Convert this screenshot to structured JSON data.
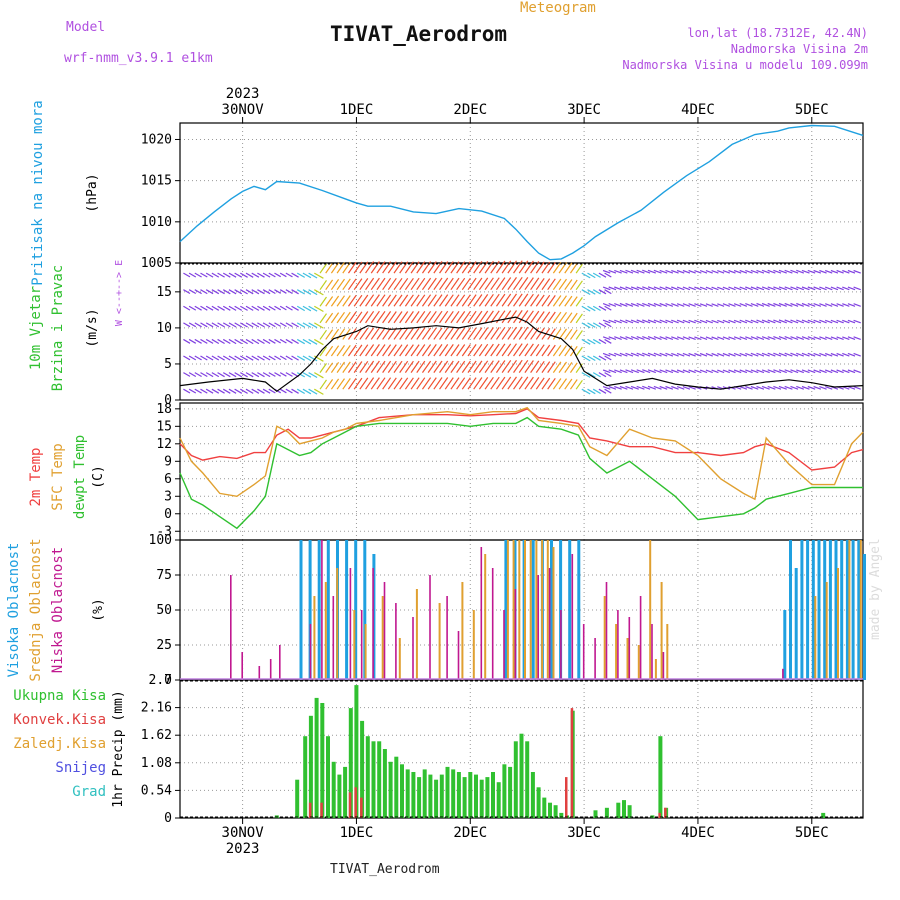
{
  "header": {
    "model_label": "Model",
    "model_name": "wrf-nmm_v3.9.1 e1km",
    "kind": "Meteogram",
    "station": "TIVAT_Aerodrom",
    "lonlat": "lon,lat (18.7312E, 42.4N)",
    "elev": "Nadmorska Visina 2m",
    "elev_model": "Nadmorska Visina u modelu 109.099m",
    "footer_station": "TIVAT_Aerodrom",
    "credit": "made by Angel"
  },
  "time_axis": {
    "top_labels": [
      "30NOV",
      "1DEC",
      "2DEC",
      "3DEC",
      "4DEC",
      "5DEC"
    ],
    "top_year": "2023",
    "bottom_labels": [
      "30NOV",
      "1DEC",
      "2DEC",
      "3DEC",
      "4DEC",
      "5DEC"
    ],
    "bottom_year": "2023",
    "range_days": [
      -0.55,
      5.45
    ]
  },
  "colors": {
    "pressure": "#1fa0e0",
    "temp2m": "#f04040",
    "sfc_temp": "#e0a030",
    "dewpoint": "#30c030",
    "cloud_high": "#1fa0e0",
    "cloud_mid": "#e0a030",
    "cloud_low": "#c01890",
    "precip_total": "#30c030",
    "precip_conv": "#e04040",
    "snow": "#5050e0",
    "hail": "#30c0c0",
    "ylabel_wind": "#30c030",
    "wind_dir_key": "#b050e0"
  },
  "chart_data": [
    {
      "type": "line",
      "panel": "pressure",
      "ylabel_lines": [
        "Pritisak na nivou mora",
        "(hPa)"
      ],
      "ylim": [
        1005,
        1022
      ],
      "yticks": [
        1005,
        1010,
        1015,
        1020
      ],
      "series": [
        {
          "name": "Pritisak na nivou mora",
          "x": [
            -0.55,
            -0.4,
            -0.25,
            -0.1,
            0.0,
            0.1,
            0.2,
            0.3,
            0.5,
            0.7,
            0.9,
            1.0,
            1.1,
            1.3,
            1.5,
            1.7,
            1.9,
            2.1,
            2.3,
            2.4,
            2.5,
            2.6,
            2.7,
            2.8,
            2.9,
            3.0,
            3.1,
            3.3,
            3.5,
            3.7,
            3.9,
            4.1,
            4.3,
            4.5,
            4.7,
            4.8,
            5.0,
            5.2,
            5.45
          ],
          "values": [
            1007.6,
            1009.5,
            1011.2,
            1012.8,
            1013.7,
            1014.3,
            1013.9,
            1014.9,
            1014.7,
            1013.8,
            1012.8,
            1012.3,
            1011.9,
            1011.9,
            1011.2,
            1011.0,
            1011.6,
            1011.3,
            1010.4,
            1009.1,
            1007.6,
            1006.2,
            1005.4,
            1005.5,
            1006.2,
            1007.1,
            1008.2,
            1009.9,
            1011.4,
            1013.6,
            1015.6,
            1017.3,
            1019.4,
            1020.6,
            1021.0,
            1021.4,
            1021.7,
            1021.6,
            1020.5
          ]
        }
      ]
    },
    {
      "type": "line",
      "panel": "wind",
      "ylabel_lines": [
        "10m Vjetar",
        "Brzina i Pravac",
        "(m/s)"
      ],
      "direction_key": [
        "N",
        "^",
        "|",
        "W  <--+-->  E",
        "|",
        "v",
        "S"
      ],
      "ylim": [
        0,
        19
      ],
      "yticks": [
        0,
        5,
        10,
        15
      ],
      "series": [
        {
          "name": "Brzina",
          "x": [
            -0.55,
            -0.3,
            0.0,
            0.2,
            0.3,
            0.5,
            0.6,
            0.7,
            0.8,
            0.9,
            1.0,
            1.1,
            1.3,
            1.5,
            1.7,
            1.9,
            2.1,
            2.3,
            2.4,
            2.5,
            2.6,
            2.7,
            2.8,
            2.9,
            3.0,
            3.2,
            3.4,
            3.6,
            3.8,
            4.0,
            4.2,
            4.4,
            4.6,
            4.8,
            5.0,
            5.2,
            5.45
          ],
          "values": [
            2.0,
            2.5,
            3.0,
            2.5,
            1.2,
            3.5,
            5.0,
            7.0,
            8.5,
            9.0,
            9.5,
            10.3,
            9.8,
            10.0,
            10.3,
            10.0,
            10.6,
            11.2,
            11.5,
            10.8,
            9.5,
            9.0,
            8.5,
            7.0,
            4.0,
            2.0,
            2.5,
            3.0,
            2.2,
            1.8,
            1.5,
            2.0,
            2.5,
            2.8,
            2.4,
            1.8,
            2.0
          ]
        }
      ]
    },
    {
      "type": "line",
      "panel": "temperature",
      "ylabel_lines": [
        "2m Temp",
        "SFC Temp",
        "dewpt Temp",
        "(C)"
      ],
      "ylim": [
        -4.5,
        19
      ],
      "yticks": [
        -3,
        0,
        3,
        6,
        9,
        12,
        15,
        18
      ],
      "x": [
        -0.55,
        -0.45,
        -0.35,
        -0.2,
        -0.05,
        0.1,
        0.2,
        0.3,
        0.4,
        0.5,
        0.6,
        0.7,
        0.8,
        0.9,
        1.0,
        1.2,
        1.5,
        1.8,
        2.0,
        2.2,
        2.4,
        2.5,
        2.6,
        2.8,
        2.95,
        3.05,
        3.2,
        3.4,
        3.6,
        3.8,
        4.0,
        4.2,
        4.4,
        4.5,
        4.6,
        4.8,
        5.0,
        5.2,
        5.35,
        5.45
      ],
      "series": [
        {
          "name": "2m Temp",
          "values": [
            12.0,
            10.0,
            9.2,
            9.8,
            9.5,
            10.5,
            10.5,
            13.5,
            14.5,
            13.0,
            13.0,
            13.5,
            14.0,
            14.5,
            15.0,
            16.5,
            17.0,
            17.0,
            16.8,
            17.0,
            17.2,
            18.0,
            16.5,
            16.0,
            15.5,
            13.0,
            12.5,
            11.5,
            11.5,
            10.5,
            10.5,
            10.0,
            10.5,
            11.5,
            12.0,
            10.5,
            7.5,
            8.0,
            10.5,
            11.0
          ]
        },
        {
          "name": "SFC Temp",
          "values": [
            13.0,
            9.0,
            7.0,
            3.5,
            3.0,
            5.0,
            6.5,
            15.0,
            14.0,
            12.0,
            12.5,
            13.0,
            14.0,
            14.5,
            15.5,
            16.0,
            17.0,
            17.5,
            17.0,
            17.5,
            17.5,
            18.2,
            16.0,
            15.5,
            15.0,
            11.5,
            10.0,
            14.5,
            13.0,
            12.5,
            10.0,
            6.0,
            3.5,
            2.5,
            13.0,
            8.5,
            5.0,
            5.0,
            12.0,
            14.0
          ]
        },
        {
          "name": "dewpt Temp",
          "values": [
            7.0,
            2.5,
            1.5,
            -0.5,
            -2.5,
            0.5,
            3.0,
            12.0,
            11.0,
            10.0,
            10.5,
            12.0,
            13.0,
            14.0,
            15.0,
            15.5,
            15.5,
            15.5,
            15.0,
            15.5,
            15.5,
            16.5,
            15.0,
            14.5,
            13.5,
            9.5,
            7.0,
            9.0,
            6.0,
            3.0,
            -1.0,
            -0.5,
            0.0,
            1.0,
            2.5,
            3.5,
            4.5,
            4.5,
            4.5,
            4.5
          ]
        }
      ]
    },
    {
      "type": "bar",
      "panel": "clouds",
      "ylabel_lines": [
        "Visoka Oblacnost",
        "Srednja Oblacnost",
        "Niska Oblacnost",
        "(%)"
      ],
      "ylim": [
        0,
        100
      ],
      "yticks": [
        0,
        25,
        50,
        75,
        100
      ],
      "series": [
        {
          "name": "Visoka Oblacnost",
          "x": [
            0.5,
            0.58,
            0.66,
            0.74,
            0.82,
            0.9,
            0.98,
            1.06,
            1.14,
            2.3,
            2.38,
            2.46,
            2.54,
            2.62,
            2.7,
            2.78,
            2.86,
            2.94,
            4.75,
            4.8,
            4.85,
            4.9,
            4.95,
            5.0,
            5.05,
            5.1,
            5.15,
            5.2,
            5.25,
            5.3,
            5.35,
            5.4,
            5.45
          ],
          "values": [
            100,
            100,
            100,
            100,
            100,
            100,
            100,
            100,
            90,
            100,
            100,
            100,
            100,
            100,
            100,
            100,
            100,
            100,
            50,
            100,
            80,
            100,
            100,
            100,
            100,
            100,
            100,
            100,
            100,
            100,
            100,
            100,
            90
          ]
        },
        {
          "name": "Srednja Oblacnost",
          "x": [
            0.6,
            0.7,
            0.8,
            0.95,
            1.05,
            1.2,
            1.35,
            1.5,
            1.7,
            1.9,
            2.0,
            2.1,
            2.3,
            2.35,
            2.4,
            2.45,
            2.5,
            2.55,
            2.6,
            2.65,
            2.7,
            3.15,
            3.25,
            3.35,
            3.45,
            3.55,
            3.6,
            3.65,
            3.7,
            5.0,
            5.1,
            5.2,
            5.3,
            5.4
          ],
          "values": [
            60,
            70,
            80,
            50,
            40,
            60,
            30,
            65,
            55,
            70,
            50,
            90,
            100,
            100,
            100,
            100,
            100,
            100,
            100,
            100,
            95,
            60,
            40,
            30,
            25,
            100,
            15,
            70,
            40,
            60,
            70,
            80,
            100,
            100
          ]
        },
        {
          "name": "Niska Oblacnost",
          "x": [
            -0.15,
            -0.05,
            0.1,
            0.2,
            0.28,
            0.55,
            0.65,
            0.75,
            0.9,
            1.0,
            1.1,
            1.2,
            1.3,
            1.45,
            1.6,
            1.75,
            1.85,
            2.05,
            2.15,
            2.25,
            2.35,
            2.55,
            2.65,
            2.75,
            2.85,
            2.95,
            3.05,
            3.15,
            3.25,
            3.35,
            3.45,
            3.55,
            3.65,
            4.7
          ],
          "values": [
            75,
            20,
            10,
            15,
            25,
            40,
            100,
            60,
            80,
            50,
            80,
            70,
            55,
            45,
            75,
            60,
            35,
            95,
            80,
            50,
            65,
            75,
            80,
            50,
            90,
            40,
            30,
            70,
            50,
            45,
            60,
            40,
            20,
            8
          ]
        }
      ]
    },
    {
      "type": "bar",
      "panel": "precipitation",
      "legend": [
        "Ukupna Kisa",
        "Konvek.Kisa",
        "Zaledj.Kisa",
        "Snijeg",
        "Grad"
      ],
      "ylabel": "1hr Precip (mm)",
      "ylim": [
        0,
        2.7
      ],
      "yticks": [
        0,
        0.54,
        1.08,
        1.62,
        2.16,
        2.7
      ],
      "series": [
        {
          "name": "Ukupna Kisa",
          "x": [
            0.3,
            0.48,
            0.55,
            0.6,
            0.65,
            0.7,
            0.75,
            0.8,
            0.85,
            0.9,
            0.95,
            1.0,
            1.05,
            1.1,
            1.15,
            1.2,
            1.25,
            1.3,
            1.35,
            1.4,
            1.45,
            1.5,
            1.55,
            1.6,
            1.65,
            1.7,
            1.75,
            1.8,
            1.85,
            1.9,
            1.95,
            2.0,
            2.05,
            2.1,
            2.15,
            2.2,
            2.25,
            2.3,
            2.35,
            2.4,
            2.45,
            2.5,
            2.55,
            2.6,
            2.65,
            2.7,
            2.75,
            2.8,
            2.85,
            2.9,
            3.1,
            3.2,
            3.3,
            3.35,
            3.4,
            3.6,
            3.67,
            3.72,
            5.1
          ],
          "values": [
            0.05,
            0.75,
            1.6,
            2.0,
            2.35,
            2.25,
            1.6,
            1.1,
            0.85,
            1.0,
            2.15,
            2.6,
            1.9,
            1.6,
            1.5,
            1.5,
            1.35,
            1.1,
            1.2,
            1.05,
            0.95,
            0.9,
            0.8,
            0.95,
            0.85,
            0.75,
            0.85,
            1.0,
            0.95,
            0.9,
            0.8,
            0.9,
            0.85,
            0.75,
            0.8,
            0.9,
            0.7,
            1.05,
            1.0,
            1.5,
            1.65,
            1.5,
            0.9,
            0.6,
            0.4,
            0.3,
            0.25,
            0.1,
            0.05,
            2.1,
            0.15,
            0.2,
            0.3,
            0.35,
            0.25,
            0.05,
            1.6,
            0.2,
            0.1
          ]
        },
        {
          "name": "Konvek.Kisa",
          "x": [
            0.6,
            0.7,
            0.95,
            1.0,
            1.05,
            2.85,
            2.9,
            3.67,
            3.72
          ],
          "values": [
            0.3,
            0.3,
            0.5,
            0.6,
            0.4,
            0.8,
            2.15,
            0.1,
            0.2
          ]
        }
      ]
    }
  ]
}
